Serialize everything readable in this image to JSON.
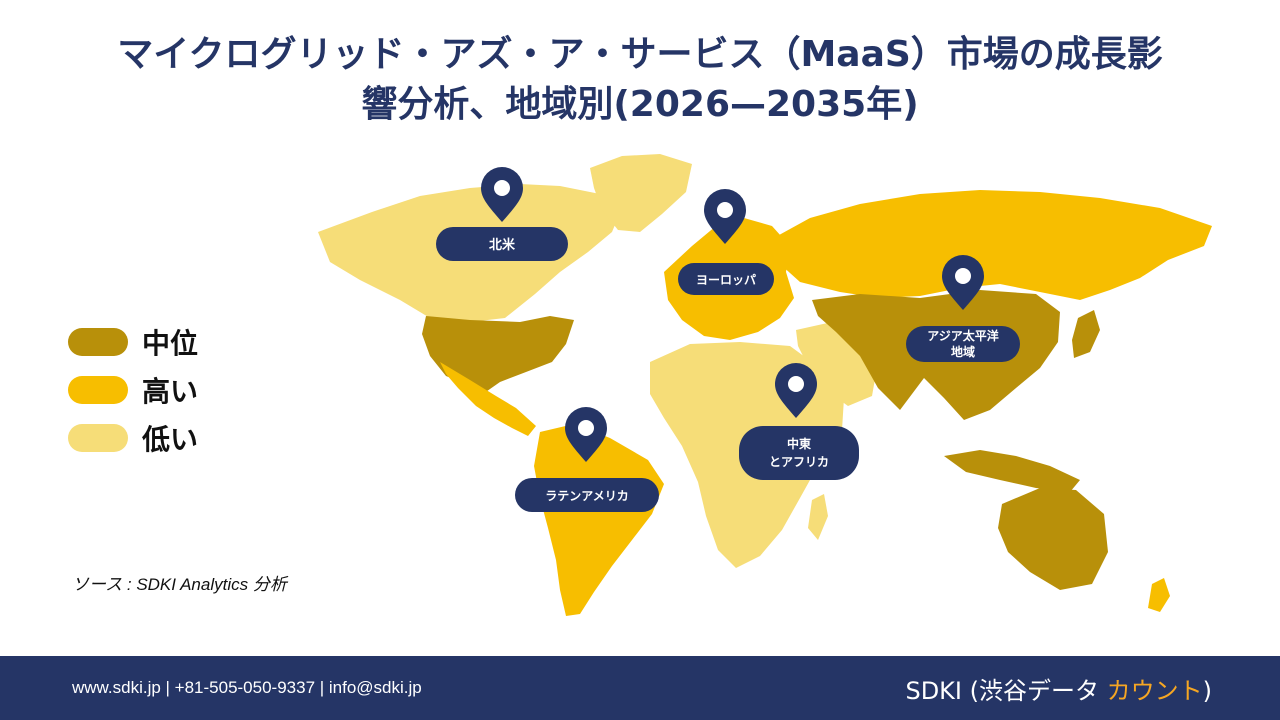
{
  "title": {
    "line1": "マイクログリッド・アズ・ア・サービス（MaaS）市場の成長影",
    "line2": "響分析、地域別(2026—2035年)"
  },
  "legend": [
    {
      "label": "中位",
      "color": "#B8900A"
    },
    {
      "label": "高い",
      "color": "#F7BE00"
    },
    {
      "label": "低い",
      "color": "#F6DD78"
    }
  ],
  "regions": {
    "north_america": {
      "label": "北米",
      "level": "中位"
    },
    "europe": {
      "label": "ヨーロッパ",
      "level": "高い"
    },
    "asia_pacific": {
      "label_line1": "アジア太平洋",
      "label_line2": "地域",
      "level": "中位"
    },
    "middle_east_africa": {
      "label_line1": "中東",
      "label_line2": "とアフリカ",
      "level": "低い"
    },
    "latin_america": {
      "label": "ラテンアメリカ",
      "level": "高い"
    }
  },
  "colors": {
    "medium": "#B8900A",
    "high": "#F7BE00",
    "low": "#F6DD78",
    "navy": "#253566",
    "accent": "#F5A623"
  },
  "source": "ソース : SDKI Analytics 分析",
  "footer": {
    "contact": "www.sdki.jp  | +81-505-050-9337 | info@sdki.jp",
    "brand_prefix": "SDKI (渋谷データ ",
    "brand_accent": "カウント",
    "brand_suffix": ")"
  }
}
